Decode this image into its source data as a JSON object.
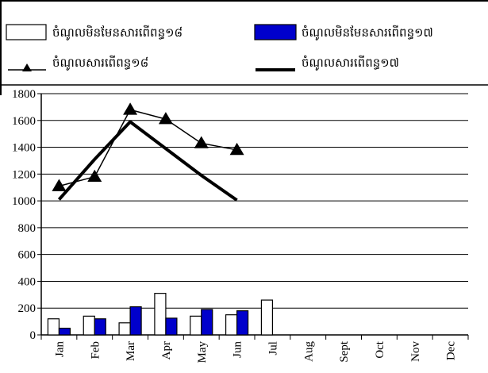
{
  "chart_data": {
    "type": "bar",
    "title": "",
    "xlabel": "",
    "ylabel": "",
    "ylim": [
      0,
      1800
    ],
    "yticks": [
      0,
      200,
      400,
      600,
      800,
      1000,
      1200,
      1400,
      1600,
      1800
    ],
    "categories": [
      "Jan",
      "Feb",
      "Mar",
      "Apr",
      "May",
      "Jun",
      "Jul",
      "Aug",
      "Sept",
      "Oct",
      "Nov",
      "Dec"
    ],
    "grid": true,
    "legend_position": "top",
    "series": [
      {
        "name": "ចំណូលមិនមែនសារពើពន្ធ១៨",
        "type": "bar",
        "color": "#ffffff",
        "values": [
          120,
          140,
          90,
          310,
          140,
          150,
          260,
          null,
          null,
          null,
          null,
          null
        ]
      },
      {
        "name": "ចំណូលមិនមែនសារពើពន្ធ១៧",
        "type": "bar",
        "color": "#0000cc",
        "values": [
          50,
          120,
          210,
          125,
          190,
          180,
          null,
          null,
          null,
          null,
          null,
          null
        ]
      },
      {
        "name": "ចំណូលសារពើពន្ធ១៨",
        "type": "line",
        "marker": "triangle",
        "color": "#000000",
        "values": [
          1110,
          1180,
          1680,
          1610,
          1430,
          1380,
          null,
          null,
          null,
          null,
          null,
          null
        ]
      },
      {
        "name": "ចំណូលសារពើពន្ធ១៧",
        "type": "line",
        "color": "#000000",
        "values": [
          1010,
          1310,
          1590,
          1390,
          1190,
          1005,
          null,
          null,
          null,
          null,
          null,
          null
        ]
      }
    ]
  }
}
